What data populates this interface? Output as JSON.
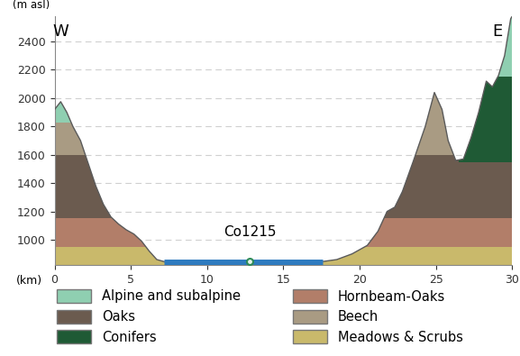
{
  "chart_data": {
    "type": "area",
    "x_label": "(km)",
    "y_label": "(m asl)",
    "x": [
      0,
      0.4,
      0.8,
      1.2,
      1.7,
      2.2,
      2.7,
      3.2,
      3.7,
      4.2,
      4.7,
      5.2,
      5.7,
      6.2,
      6.7,
      7.2,
      17.5,
      18.5,
      19.5,
      20.5,
      21.2,
      21.8,
      22.3,
      22.8,
      23.5,
      24.3,
      24.9,
      25.4,
      25.8,
      26.3,
      26.8,
      27.3,
      27.8,
      28.3,
      28.7,
      29.1,
      29.5,
      29.9,
      30
    ],
    "values": [
      1920,
      1975,
      1900,
      1800,
      1700,
      1540,
      1380,
      1250,
      1160,
      1110,
      1070,
      1040,
      990,
      920,
      860,
      845,
      845,
      860,
      900,
      960,
      1060,
      1200,
      1230,
      1340,
      1550,
      1800,
      2040,
      1920,
      1700,
      1560,
      1570,
      1720,
      1900,
      2120,
      2080,
      2160,
      2300,
      2560,
      2580
    ],
    "color": "#5a5a5a",
    "xlim": [
      0,
      30
    ],
    "xticks": [
      0,
      5,
      10,
      15,
      20,
      25,
      30
    ],
    "ylim": [
      820,
      2580
    ],
    "yticks": [
      1000,
      1200,
      1400,
      1600,
      1800,
      2000,
      2200,
      2400
    ],
    "grid": true,
    "legend": "lower center",
    "series": [
      {
        "name": "Alpine and subalpine",
        "color": "#8fcfb1"
      },
      {
        "name": "Conifers",
        "color": "#1f5a35"
      },
      {
        "name": "Beech",
        "color": "#a99b83"
      },
      {
        "name": "Oaks",
        "color": "#6b5b4f"
      },
      {
        "name": "Hornbeam-Oaks",
        "color": "#b27e69"
      },
      {
        "name": "Meadows & Scrubs",
        "color": "#c9b96b"
      }
    ],
    "zones": [
      {
        "series": "Meadows & Scrubs",
        "x": [
          0,
          30
        ],
        "elevation": [
          820,
          950
        ]
      },
      {
        "series": "Hornbeam-Oaks",
        "x": [
          0,
          30
        ],
        "elevation": [
          950,
          1150
        ]
      },
      {
        "series": "Oaks",
        "x": [
          0,
          30
        ],
        "elevation": [
          1150,
          1600
        ]
      },
      {
        "series": "Beech",
        "x": [
          0,
          26.5
        ],
        "elevation": [
          1600,
          2100
        ]
      },
      {
        "series": "Alpine and subalpine",
        "x": [
          0,
          3
        ],
        "elevation": [
          1830,
          2100
        ]
      },
      {
        "series": "Conifers",
        "x": [
          26.5,
          30
        ],
        "elevation": [
          1550,
          2150
        ]
      },
      {
        "series": "Alpine and subalpine",
        "x": [
          26.5,
          30
        ],
        "elevation": [
          2150,
          2580
        ]
      }
    ],
    "lake": {
      "x": [
        7.2,
        17.6
      ],
      "elevation": 840,
      "color": "#2e7bbf"
    },
    "core": {
      "name": "Co1215",
      "x": 12.8,
      "elevation": 845,
      "color": "#2e8b57"
    },
    "annotations": [
      {
        "text": "W",
        "x": 0.4,
        "elevation": 2470
      },
      {
        "text": "E",
        "x": 29.0,
        "elevation": 2470
      }
    ]
  }
}
